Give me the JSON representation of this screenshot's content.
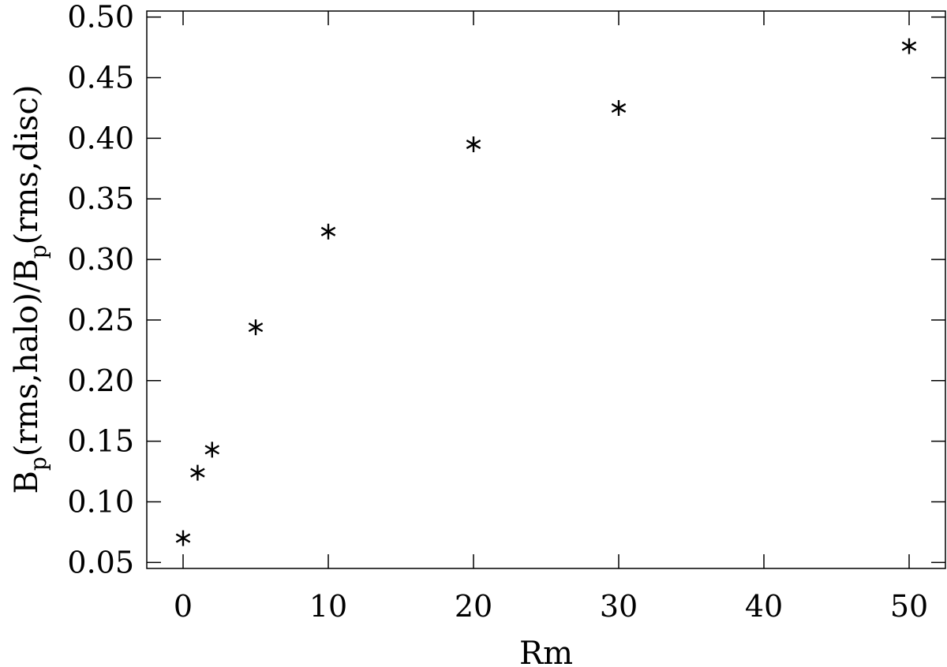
{
  "chart_data": {
    "type": "scatter",
    "title": "",
    "xlabel": "Rm",
    "ylabel": {
      "parts": [
        {
          "text": "B",
          "sub": false
        },
        {
          "text": "p",
          "sub": true
        },
        {
          "text": "(rms,halo)/B",
          "sub": false
        },
        {
          "text": "p",
          "sub": true
        },
        {
          "text": "(rms,disc)",
          "sub": false
        }
      ]
    },
    "xlim": [
      -2.5,
      52.5
    ],
    "ylim": [
      0.045,
      0.505
    ],
    "x_ticks": [
      0,
      10,
      20,
      30,
      40,
      50
    ],
    "x_tick_labels": [
      "0",
      "10",
      "20",
      "30",
      "40",
      "50"
    ],
    "y_ticks": [
      0.05,
      0.1,
      0.15,
      0.2,
      0.25,
      0.3,
      0.35,
      0.4,
      0.45,
      0.5
    ],
    "y_tick_labels": [
      "0.05",
      "0.10",
      "0.15",
      "0.20",
      "0.25",
      "0.30",
      "0.35",
      "0.40",
      "0.45",
      "0.50"
    ],
    "marker": "asterisk",
    "grid": false,
    "series": [
      {
        "x": [
          0,
          1,
          2,
          5,
          10,
          20,
          30,
          50
        ],
        "y": [
          0.07,
          0.124,
          0.143,
          0.244,
          0.323,
          0.395,
          0.425,
          0.476
        ]
      }
    ]
  }
}
